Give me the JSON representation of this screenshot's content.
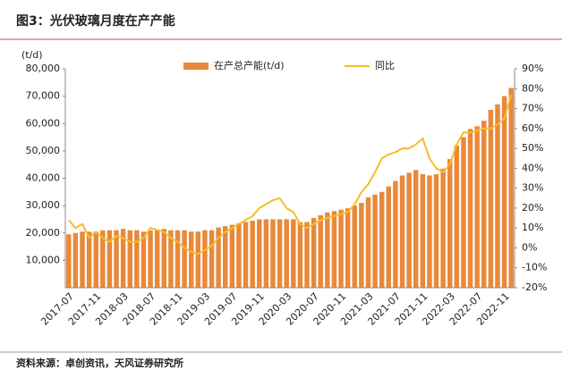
{
  "chart_data": {
    "type": "bar-line",
    "title": "图3：光伏玻璃月度在产产能",
    "y_label": "(t/d)",
    "source": "资料来源：卓创资讯，天风证券研究所",
    "categories": [
      "2017-07",
      null,
      null,
      null,
      "2017-11",
      null,
      null,
      null,
      "2018-03",
      null,
      null,
      null,
      "2018-07",
      null,
      null,
      null,
      "2018-11",
      null,
      null,
      null,
      "2019-03",
      null,
      null,
      null,
      "2019-07",
      null,
      null,
      null,
      "2019-11",
      null,
      null,
      null,
      "2020-03",
      null,
      null,
      null,
      "2020-07",
      null,
      null,
      null,
      "2020-11",
      null,
      null,
      null,
      "2021-03",
      null,
      null,
      null,
      "2021-07",
      null,
      null,
      null,
      "2021-11",
      null,
      null,
      null,
      "2022-03",
      null,
      null,
      null,
      "2022-07",
      null,
      null,
      null,
      "2022-11",
      null
    ],
    "series": [
      {
        "name": "在产总产能(t/d)",
        "color": "#e8893a",
        "kind": "bar",
        "values": [
          19500,
          20000,
          20500,
          20500,
          20500,
          21000,
          21000,
          21000,
          21500,
          21000,
          21000,
          20500,
          21000,
          21000,
          21500,
          21000,
          21000,
          21000,
          20500,
          20500,
          21000,
          21000,
          22000,
          22500,
          23000,
          23500,
          24000,
          24500,
          25000,
          25000,
          25000,
          25000,
          25000,
          25000,
          24000,
          24000,
          25500,
          26500,
          27500,
          28000,
          28500,
          29000,
          30000,
          31000,
          33000,
          34000,
          35000,
          37000,
          39000,
          41000,
          42000,
          43000,
          41500,
          41000,
          41500,
          43500,
          47000,
          52000,
          55000,
          58000,
          59000,
          61000,
          65000,
          67000,
          70000,
          73000
        ]
      },
      {
        "name": "同比",
        "color": "#f5bd2c",
        "kind": "line",
        "axis": "y2",
        "values": [
          14,
          10,
          12,
          5,
          8,
          5,
          3,
          6,
          5,
          3,
          3,
          5,
          10,
          9,
          8,
          5,
          3,
          0,
          -2,
          -3,
          -1,
          1,
          5,
          8,
          10,
          12,
          14,
          16,
          20,
          22,
          24,
          25,
          20,
          18,
          12,
          10,
          12,
          14,
          15,
          16,
          17,
          18,
          22,
          28,
          32,
          38,
          45,
          47,
          48,
          50,
          50,
          52,
          55,
          45,
          40,
          38,
          42,
          52,
          58,
          58,
          59,
          60,
          60,
          62,
          65,
          77
        ]
      }
    ],
    "ylim": [
      0,
      80000
    ],
    "yticks": [
      {
        "value": 10000,
        "label": "10,000"
      },
      {
        "value": 20000,
        "label": "20,000"
      },
      {
        "value": 30000,
        "label": "30,000"
      },
      {
        "value": 40000,
        "label": "40,000"
      },
      {
        "value": 50000,
        "label": "50,000"
      },
      {
        "value": 60000,
        "label": "60,000"
      },
      {
        "value": 70000,
        "label": "70,000"
      },
      {
        "value": 80000,
        "label": "80,000"
      }
    ],
    "y2lim": [
      -20,
      90
    ],
    "y2ticks": [
      {
        "value": -20,
        "label": "-20%"
      },
      {
        "value": -10,
        "label": "-10%"
      },
      {
        "value": 0,
        "label": "0%"
      },
      {
        "value": 10,
        "label": "10%"
      },
      {
        "value": 20,
        "label": "20%"
      },
      {
        "value": 30,
        "label": "30%"
      },
      {
        "value": 40,
        "label": "40%"
      },
      {
        "value": 50,
        "label": "50%"
      },
      {
        "value": 60,
        "label": "60%"
      },
      {
        "value": 70,
        "label": "70%"
      },
      {
        "value": 80,
        "label": "80%"
      },
      {
        "value": 90,
        "label": "90%"
      }
    ],
    "legend": "top"
  }
}
